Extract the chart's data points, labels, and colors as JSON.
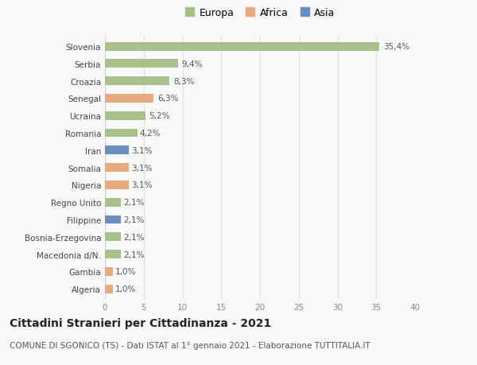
{
  "categories": [
    "Algeria",
    "Gambia",
    "Macedonia d/N.",
    "Bosnia-Erzegovina",
    "Filippine",
    "Regno Unito",
    "Nigeria",
    "Somalia",
    "Iran",
    "Romania",
    "Ucraina",
    "Senegal",
    "Croazia",
    "Serbia",
    "Slovenia"
  ],
  "values": [
    1.0,
    1.0,
    2.1,
    2.1,
    2.1,
    2.1,
    3.1,
    3.1,
    3.1,
    4.2,
    5.2,
    6.3,
    8.3,
    9.4,
    35.4
  ],
  "labels": [
    "1,0%",
    "1,0%",
    "2,1%",
    "2,1%",
    "2,1%",
    "2,1%",
    "3,1%",
    "3,1%",
    "3,1%",
    "4,2%",
    "5,2%",
    "6,3%",
    "8,3%",
    "9,4%",
    "35,4%"
  ],
  "colors": [
    "#e8a97e",
    "#e8a97e",
    "#a8c08a",
    "#a8c08a",
    "#6b8ec0",
    "#a8c08a",
    "#e8a97e",
    "#e8a97e",
    "#6b8ec0",
    "#a8c08a",
    "#a8c08a",
    "#e8a97e",
    "#a8c08a",
    "#a8c08a",
    "#a8c08a"
  ],
  "legend": [
    {
      "label": "Europa",
      "color": "#a8c08a"
    },
    {
      "label": "Africa",
      "color": "#e8a97e"
    },
    {
      "label": "Asia",
      "color": "#6b8ec0"
    }
  ],
  "xlim": [
    0,
    40
  ],
  "xticks": [
    0,
    5,
    10,
    15,
    20,
    25,
    30,
    35,
    40
  ],
  "title": "Cittadini Stranieri per Cittadinanza - 2021",
  "subtitle": "COMUNE DI SGONICO (TS) - Dati ISTAT al 1° gennaio 2021 - Elaborazione TUTTITALIA.IT",
  "bg_color": "#f9f9f9",
  "grid_color": "#e0e0e0",
  "bar_height": 0.5,
  "title_fontsize": 10,
  "subtitle_fontsize": 7.5,
  "tick_fontsize": 7.5,
  "value_fontsize": 7.5
}
